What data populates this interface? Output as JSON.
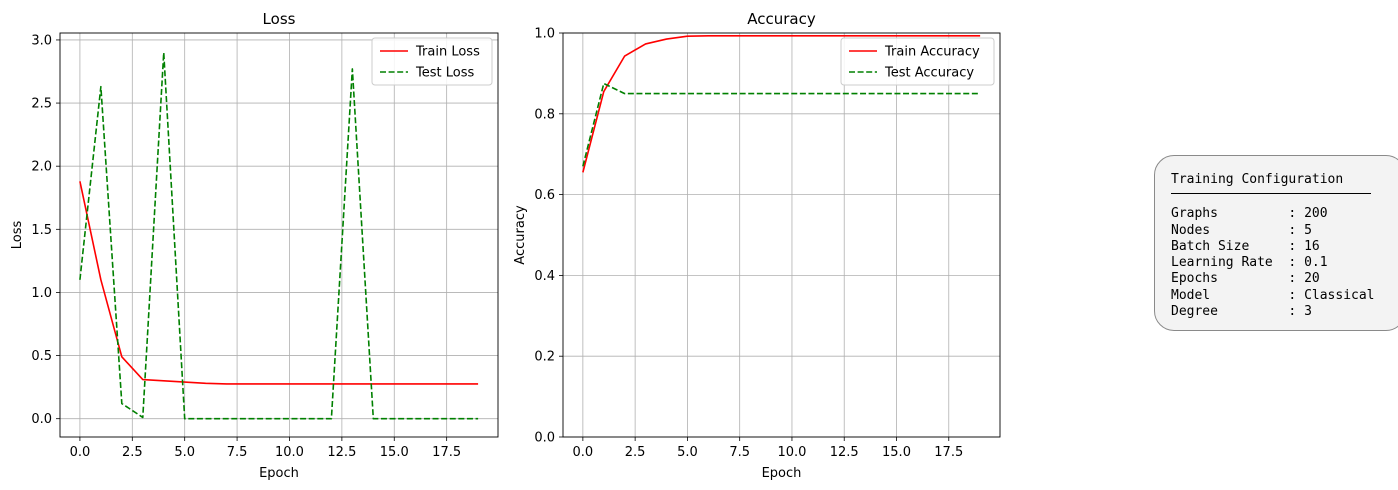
{
  "chart_data": [
    {
      "type": "line",
      "title": "Loss",
      "xlabel": "Epoch",
      "ylabel": "Loss",
      "xlim": [
        -0.95,
        19.95
      ],
      "ylim": [
        -0.145,
        3.055
      ],
      "xticks": [
        0,
        2.5,
        5,
        7.5,
        10,
        12.5,
        15,
        17.5
      ],
      "xtick_labels": [
        "0.0",
        "2.5",
        "5.0",
        "7.5",
        "10.0",
        "12.5",
        "15.0",
        "17.5"
      ],
      "yticks": [
        0,
        0.5,
        1,
        1.5,
        2,
        2.5,
        3
      ],
      "ytick_labels": [
        "0.0",
        "0.5",
        "1.0",
        "1.5",
        "2.0",
        "2.5",
        "3.0"
      ],
      "grid": true,
      "legend_loc": "upper right",
      "x": [
        0,
        1,
        2,
        3,
        4,
        5,
        6,
        7,
        8,
        9,
        10,
        11,
        12,
        13,
        14,
        15,
        16,
        17,
        18,
        19
      ],
      "series": [
        {
          "name": "Train Loss",
          "color": "#ff0000",
          "dash": "solid",
          "values": [
            1.88,
            1.1,
            0.49,
            0.31,
            0.3,
            0.29,
            0.28,
            0.275,
            0.275,
            0.275,
            0.275,
            0.275,
            0.275,
            0.275,
            0.275,
            0.275,
            0.275,
            0.275,
            0.275,
            0.275
          ]
        },
        {
          "name": "Test Loss",
          "color": "#008000",
          "dash": "dashed",
          "values": [
            1.1,
            2.63,
            0.12,
            0.01,
            2.9,
            0.0,
            0.0,
            0.0,
            0.0,
            0.0,
            0.0,
            0.0,
            0.0,
            2.77,
            0.0,
            0.0,
            0.0,
            0.0,
            0.0,
            0.0
          ]
        }
      ]
    },
    {
      "type": "line",
      "title": "Accuracy",
      "xlabel": "Epoch",
      "ylabel": "Accuracy",
      "xlim": [
        -0.95,
        19.95
      ],
      "ylim": [
        0,
        1
      ],
      "xticks": [
        0,
        2.5,
        5,
        7.5,
        10,
        12.5,
        15,
        17.5
      ],
      "xtick_labels": [
        "0.0",
        "2.5",
        "5.0",
        "7.5",
        "10.0",
        "12.5",
        "15.0",
        "17.5"
      ],
      "yticks": [
        0,
        0.2,
        0.4,
        0.6,
        0.8,
        1.0
      ],
      "ytick_labels": [
        "0.0",
        "0.2",
        "0.4",
        "0.6",
        "0.8",
        "1.0"
      ],
      "grid": true,
      "legend_loc": "upper right",
      "x": [
        0,
        1,
        2,
        3,
        4,
        5,
        6,
        7,
        8,
        9,
        10,
        11,
        12,
        13,
        14,
        15,
        16,
        17,
        18,
        19
      ],
      "series": [
        {
          "name": "Train Accuracy",
          "color": "#ff0000",
          "dash": "solid",
          "values": [
            0.655,
            0.855,
            0.943,
            0.973,
            0.985,
            0.992,
            0.993,
            0.993,
            0.993,
            0.993,
            0.993,
            0.993,
            0.993,
            0.993,
            0.993,
            0.993,
            0.993,
            0.993,
            0.993,
            0.993
          ]
        },
        {
          "name": "Test Accuracy",
          "color": "#008000",
          "dash": "dashed",
          "values": [
            0.67,
            0.875,
            0.85,
            0.85,
            0.85,
            0.85,
            0.85,
            0.85,
            0.85,
            0.85,
            0.85,
            0.85,
            0.85,
            0.85,
            0.85,
            0.85,
            0.85,
            0.85,
            0.85,
            0.85
          ]
        }
      ]
    }
  ],
  "config": {
    "title": "Training Configuration",
    "rows": [
      {
        "key": "Graphs",
        "value": "200"
      },
      {
        "key": "Nodes",
        "value": "5"
      },
      {
        "key": "Batch Size",
        "value": "16"
      },
      {
        "key": "Learning Rate",
        "value": "0.1"
      },
      {
        "key": "Epochs",
        "value": "20"
      },
      {
        "key": "Model",
        "value": "Classical"
      },
      {
        "key": "Degree",
        "value": "3"
      }
    ]
  }
}
